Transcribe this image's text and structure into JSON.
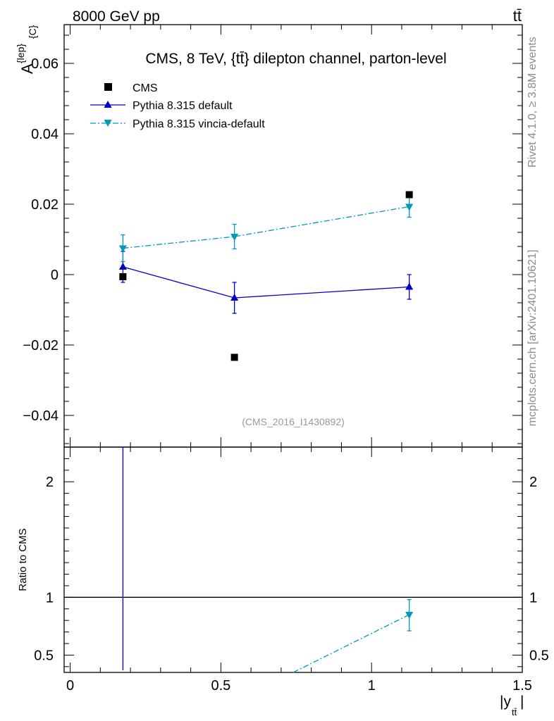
{
  "header": {
    "left_label": "8000 GeV pp",
    "right_label": "tt̄"
  },
  "side_text": {
    "rivet": "Rivet 4.1.0, ≥ 3.8M events",
    "mcplots": "mcplots.cern.ch [arXiv:2401.10621]"
  },
  "chart_data": [
    {
      "type": "scatter",
      "title": "CMS, 8 TeV, {tt̄} dilepton channel, parton-level",
      "watermark": "(CMS_2016_I1430892)",
      "ylabel": "A^{lep}_{C}",
      "ylabel_main": "A",
      "ylabel_sup": "{lep}",
      "ylabel_sub": "{C}",
      "xlim": [
        -0.02,
        1.5
      ],
      "ylim": [
        -0.049,
        0.071
      ],
      "xticks": [
        0,
        0.5,
        1,
        1.5
      ],
      "xtick_labels": [
        "0",
        "0.5",
        "1",
        "1.5"
      ],
      "yticks": [
        -0.04,
        -0.02,
        0,
        0.02,
        0.04,
        0.06
      ],
      "ytick_labels": [
        "−0.04",
        "−0.02",
        "0",
        "0.02",
        "0.04",
        "0.06"
      ],
      "legend_position": "top-left",
      "series": [
        {
          "name": "CMS",
          "color": "#000000",
          "marker": "square",
          "x": [
            0.175,
            0.545,
            1.125
          ],
          "y": [
            -0.0006,
            -0.0235,
            0.0227
          ],
          "yerr": [
            0,
            0,
            0
          ]
        },
        {
          "name": "Pythia 8.315 default",
          "color": "#0000cc",
          "marker": "triangle-up",
          "line": "solid",
          "x": [
            0.175,
            0.545,
            1.125
          ],
          "y": [
            0.0022,
            -0.0066,
            -0.0035
          ],
          "yerr": [
            0.0044,
            0.0044,
            0.0035
          ]
        },
        {
          "name": "Pythia 8.315 vincia-default",
          "color": "#0099bb",
          "marker": "triangle-down",
          "line": "dashdot",
          "x": [
            0.175,
            0.545,
            1.125
          ],
          "y": [
            0.0075,
            0.0108,
            0.0193
          ],
          "yerr": [
            0.0038,
            0.0035,
            0.003
          ]
        }
      ]
    },
    {
      "type": "scatter",
      "ylabel": "Ratio to CMS",
      "xlabel": "|y_tt̄|",
      "xlabel_main": "|y",
      "xlabel_sub": "tt̄",
      "xlabel_end": "|",
      "xlim": [
        -0.02,
        1.5
      ],
      "ylim": [
        0.35,
        2.3
      ],
      "yticks": [
        0.5,
        1,
        2
      ],
      "ytick_labels": [
        "0.5",
        "1",
        "2"
      ],
      "reference_line": 1,
      "series": [
        {
          "name": "Pythia 8.315 default",
          "color": "#0000cc",
          "line": "solid",
          "vertical_line_x": 0.175
        },
        {
          "name": "Pythia 8.315 vincia-default",
          "color": "#0099bb",
          "marker": "triangle-down",
          "line": "dashdot",
          "x": [
            0.74,
            1.125
          ],
          "y": [
            0.35,
            0.85
          ],
          "yerr_low": [
            0,
            0.14
          ],
          "yerr_high": [
            0,
            0.13
          ]
        }
      ]
    }
  ]
}
